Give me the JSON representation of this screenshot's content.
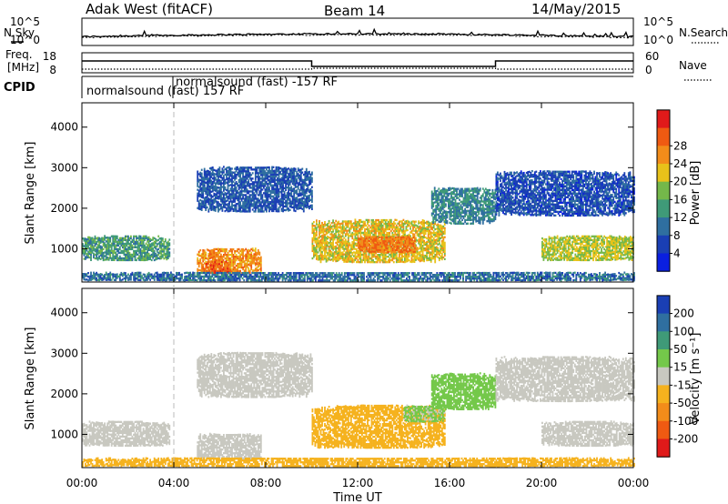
{
  "header": {
    "site": "Adak West (fitACF)",
    "beam": "Beam 14",
    "date": "14/May/2015"
  },
  "sky_panel": {
    "left_label": "N.Sky",
    "right_label": "N.Search",
    "left_ticks": [
      "10^5",
      "10^0"
    ],
    "right_ticks": [
      "10^5",
      "10^0"
    ]
  },
  "freq_panel": {
    "left_label_1": "Freq.",
    "left_label_2": "[MHz]",
    "right_label": "Nave",
    "left_ticks": [
      "18",
      "8"
    ],
    "right_ticks": [
      "60",
      "0"
    ]
  },
  "cpid_panel": {
    "label": "CPID",
    "entries": [
      {
        "text": "normalsound (fast) 157 RF"
      },
      {
        "text": "normalsound (fast) -157 RF"
      }
    ]
  },
  "chart_data": [
    {
      "type": "heatmap",
      "name": "power",
      "ylabel": "Slant Range [km]",
      "colorbar_label": "Power [dB]",
      "colorbar_ticks": [
        4,
        8,
        12,
        16,
        20,
        24,
        28
      ],
      "colors": [
        "#0a1fe0",
        "#1a3fb4",
        "#2f6fa0",
        "#3f9a78",
        "#74b84a",
        "#e8c21a",
        "#f28c1a",
        "#ef5a12",
        "#e01a1a"
      ],
      "ylim": [
        180,
        4600
      ],
      "yticks": [
        1000,
        2000,
        3000,
        4000
      ],
      "xlim": [
        0,
        24
      ],
      "blobs": [
        {
          "t0": 0.0,
          "t1": 3.8,
          "r0": 700,
          "r1": 1300,
          "v": 12
        },
        {
          "t0": 5.0,
          "t1": 7.8,
          "r0": 380,
          "r1": 1000,
          "v": 24
        },
        {
          "t0": 5.4,
          "t1": 6.4,
          "r0": 380,
          "r1": 700,
          "v": 28
        },
        {
          "t0": 5.0,
          "t1": 10.0,
          "r0": 1900,
          "r1": 3000,
          "v": 6
        },
        {
          "t0": 10.0,
          "t1": 15.8,
          "r0": 650,
          "r1": 1700,
          "v": 20
        },
        {
          "t0": 12.0,
          "t1": 14.5,
          "r0": 900,
          "r1": 1300,
          "v": 26
        },
        {
          "t0": 15.2,
          "t1": 18.0,
          "r0": 1600,
          "r1": 2500,
          "v": 10
        },
        {
          "t0": 18.0,
          "t1": 24.0,
          "r0": 1800,
          "r1": 2900,
          "v": 5
        },
        {
          "t0": 20.0,
          "t1": 24.0,
          "r0": 700,
          "r1": 1300,
          "v": 18
        },
        {
          "t0": 0.0,
          "t1": 24.0,
          "r0": 200,
          "r1": 400,
          "v": 8
        }
      ]
    },
    {
      "type": "heatmap",
      "name": "velocity",
      "ylabel": "Slant Range [km]",
      "xlabel": "Time UT",
      "colorbar_label": "Velocity [m s⁻¹]",
      "colorbar_ticks": [
        200,
        100,
        50,
        15,
        -15,
        -50,
        -100,
        -200
      ],
      "colors": [
        "#1a3fb4",
        "#2f6fa0",
        "#3f9a78",
        "#74c84a",
        "#c8c8c0",
        "#f5b21e",
        "#f28c1a",
        "#ef5a12",
        "#e01a1a"
      ],
      "ylim": [
        180,
        4600
      ],
      "yticks": [
        1000,
        2000,
        3000,
        4000
      ],
      "xlim": [
        0,
        24
      ],
      "xticks": [
        "00:00",
        "04:00",
        "08:00",
        "12:00",
        "16:00",
        "20:00",
        "00:00"
      ],
      "blobs": [
        {
          "t0": 0.0,
          "t1": 3.8,
          "r0": 700,
          "r1": 1300,
          "v": 0
        },
        {
          "t0": 5.0,
          "t1": 7.8,
          "r0": 380,
          "r1": 1000,
          "v": 0
        },
        {
          "t0": 5.0,
          "t1": 10.0,
          "r0": 1900,
          "r1": 3000,
          "v": 0
        },
        {
          "t0": 10.0,
          "t1": 15.8,
          "r0": 650,
          "r1": 1700,
          "v": -40
        },
        {
          "t0": 14.0,
          "t1": 15.8,
          "r0": 1300,
          "r1": 1700,
          "v": 20
        },
        {
          "t0": 15.2,
          "t1": 18.0,
          "r0": 1600,
          "r1": 2500,
          "v": 25
        },
        {
          "t0": 18.0,
          "t1": 24.0,
          "r0": 1800,
          "r1": 2900,
          "v": 0
        },
        {
          "t0": 20.0,
          "t1": 24.0,
          "r0": 700,
          "r1": 1300,
          "v": 0
        },
        {
          "t0": 0.0,
          "t1": 24.0,
          "r0": 200,
          "r1": 400,
          "v": -30
        }
      ]
    }
  ]
}
